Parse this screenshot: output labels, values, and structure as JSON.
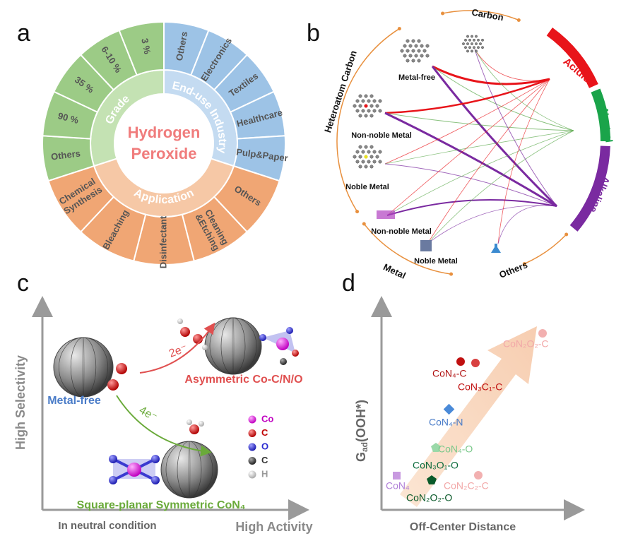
{
  "panel_labels": [
    "a",
    "b",
    "c",
    "d"
  ],
  "a": {
    "center": [
      "Hydrogen",
      "Peroxide"
    ],
    "groups": [
      {
        "name": "Grade",
        "items": [
          "Others",
          "90 %",
          "35 %",
          "6-10 %",
          "3 %"
        ]
      },
      {
        "name": "End-use Industry",
        "items": [
          "Others",
          "Electronics",
          "Textiles",
          "Healthcare",
          "Pulp&Paper"
        ]
      },
      {
        "name": "Application",
        "items": [
          "Others",
          [
            "Cleaning",
            "&Etching"
          ],
          "Disinfectant",
          "Bleaching",
          [
            "Chemical",
            "Synthesis"
          ]
        ]
      }
    ]
  },
  "b": {
    "carbon": "Carbon",
    "heteroatom_carbon": "Heteroatom Carbon",
    "metal_free": "Metal-free",
    "non_noble_metal": "Non-noble Metal",
    "noble_metal": "Noble Metal",
    "acidic": "Acidic",
    "neutral": "Neutral",
    "alkaline": "Alkaline",
    "metal_non_noble": "Non-noble Metal",
    "metal_noble": "Noble Metal",
    "metal": "Metal",
    "others": "Others"
  },
  "c": {
    "y_axis": "High Selectivity",
    "x_axis": "High Activity",
    "condition": "In neutral condition",
    "metal_free": "Metal-free",
    "two_e": "2e⁻",
    "four_e": "4e⁻",
    "asymmetric": "Asymmetric Co-C/N/O",
    "symmetric": "Square-planar Symmetric CoN₄",
    "legend": [
      "Co",
      "C",
      "O",
      "C",
      "H"
    ]
  },
  "d": {
    "y_axis": {
      "main": "G",
      "sub": "ad",
      "rest": "(OOH*)"
    },
    "x_axis": "Off-Center Distance",
    "labels": [
      "CoN₂O₂-C",
      "CoN₄-C",
      "CoN₃C₁-C",
      "CoN₄-N",
      "CoN₄-O",
      "CoN₃O₁-O",
      "CoN₄",
      "CoN₂C₂-C",
      "CoN₂O₂-O"
    ]
  }
}
